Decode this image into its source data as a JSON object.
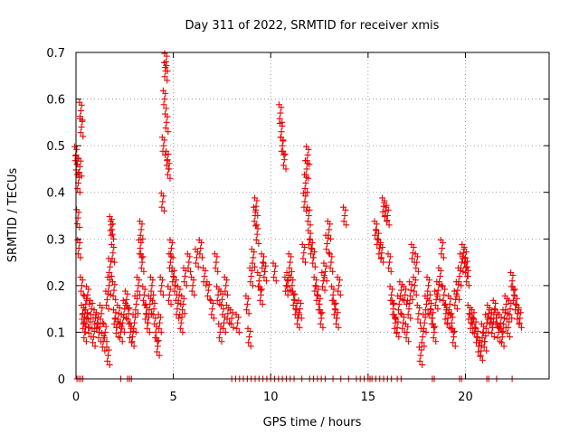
{
  "chart_data": {
    "type": "scatter",
    "title": "Day 311 of 2022, SRMTID for receiver xmis",
    "xlabel": "GPS time / hours",
    "ylabel": "SRMTID / TECUs",
    "xlim": [
      0,
      24.3
    ],
    "ylim": [
      0,
      0.7
    ],
    "xticks": [
      0,
      5,
      10,
      15,
      20
    ],
    "yticks": [
      0,
      0.1,
      0.2,
      0.3,
      0.4,
      0.5,
      0.6,
      0.7
    ],
    "xtick_labels": [
      "0",
      "5",
      "10",
      "15",
      "20"
    ],
    "ytick_labels": [
      "0",
      "0.1",
      "0.2",
      "0.3",
      "0.4",
      "0.5",
      "0.6",
      "0.7"
    ],
    "grid": true,
    "marker": "plus",
    "marker_color": "#ee0000",
    "series": [
      {
        "name": "SRMTID",
        "points": [
          [
            0.0,
            0.48
          ],
          [
            0.05,
            0.46
          ],
          [
            0.1,
            0.345
          ],
          [
            0.12,
            0.42
          ],
          [
            0.15,
            0.28
          ],
          [
            0.2,
            0.455
          ],
          [
            0.25,
            0.575
          ],
          [
            0.28,
            0.54
          ],
          [
            0.3,
            0.2
          ],
          [
            0.35,
            0.14
          ],
          [
            0.4,
            0.12
          ],
          [
            0.45,
            0.1
          ],
          [
            0.5,
            0.16
          ],
          [
            0.55,
            0.13
          ],
          [
            0.6,
            0.18
          ],
          [
            0.7,
            0.11
          ],
          [
            0.8,
            0.15
          ],
          [
            0.9,
            0.09
          ],
          [
            1.0,
            0.13
          ],
          [
            1.1,
            0.12
          ],
          [
            1.2,
            0.1
          ],
          [
            1.3,
            0.14
          ],
          [
            1.4,
            0.08
          ],
          [
            1.5,
            0.1
          ],
          [
            1.6,
            0.17
          ],
          [
            1.65,
            0.05
          ],
          [
            1.7,
            0.2
          ],
          [
            1.75,
            0.24
          ],
          [
            1.8,
            0.33
          ],
          [
            1.85,
            0.32
          ],
          [
            1.9,
            0.27
          ],
          [
            1.95,
            0.19
          ],
          [
            2.0,
            0.13
          ],
          [
            2.1,
            0.11
          ],
          [
            2.2,
            0.14
          ],
          [
            2.3,
            0.1
          ],
          [
            2.4,
            0.12
          ],
          [
            2.5,
            0.15
          ],
          [
            2.6,
            0.17
          ],
          [
            2.7,
            0.14
          ],
          [
            2.8,
            0.1
          ],
          [
            2.9,
            0.09
          ],
          [
            3.0,
            0.12
          ],
          [
            3.1,
            0.16
          ],
          [
            3.2,
            0.2
          ],
          [
            3.3,
            0.28
          ],
          [
            3.35,
            0.32
          ],
          [
            3.4,
            0.25
          ],
          [
            3.5,
            0.18
          ],
          [
            3.6,
            0.14
          ],
          [
            3.7,
            0.12
          ],
          [
            3.8,
            0.16
          ],
          [
            3.9,
            0.2
          ],
          [
            4.0,
            0.15
          ],
          [
            4.1,
            0.1
          ],
          [
            4.2,
            0.07
          ],
          [
            4.3,
            0.12
          ],
          [
            4.4,
            0.2
          ],
          [
            4.45,
            0.38
          ],
          [
            4.5,
            0.5
          ],
          [
            4.55,
            0.6
          ],
          [
            4.6,
            0.66
          ],
          [
            4.62,
            0.68
          ],
          [
            4.65,
            0.55
          ],
          [
            4.7,
            0.47
          ],
          [
            4.75,
            0.45
          ],
          [
            4.8,
            0.18
          ],
          [
            4.85,
            0.25
          ],
          [
            4.9,
            0.28
          ],
          [
            5.0,
            0.22
          ],
          [
            5.1,
            0.2
          ],
          [
            5.2,
            0.15
          ],
          [
            5.3,
            0.18
          ],
          [
            5.4,
            0.12
          ],
          [
            5.5,
            0.16
          ],
          [
            5.6,
            0.22
          ],
          [
            5.8,
            0.25
          ],
          [
            6.0,
            0.2
          ],
          [
            6.2,
            0.26
          ],
          [
            6.4,
            0.28
          ],
          [
            6.6,
            0.22
          ],
          [
            6.8,
            0.19
          ],
          [
            7.0,
            0.15
          ],
          [
            7.2,
            0.25
          ],
          [
            7.3,
            0.18
          ],
          [
            7.4,
            0.1
          ],
          [
            7.5,
            0.17
          ],
          [
            7.6,
            0.12
          ],
          [
            7.7,
            0.2
          ],
          [
            7.8,
            0.14
          ],
          [
            8.0,
            0.13
          ],
          [
            8.3,
            0.12
          ],
          [
            8.8,
            0.16
          ],
          [
            8.9,
            0.09
          ],
          [
            9.0,
            0.22
          ],
          [
            9.1,
            0.26
          ],
          [
            9.2,
            0.35
          ],
          [
            9.25,
            0.37
          ],
          [
            9.3,
            0.31
          ],
          [
            9.4,
            0.21
          ],
          [
            9.5,
            0.18
          ],
          [
            9.6,
            0.25
          ],
          [
            9.7,
            0.23
          ],
          [
            10.2,
            0.23
          ],
          [
            10.5,
            0.57
          ],
          [
            10.55,
            0.53
          ],
          [
            10.6,
            0.5
          ],
          [
            10.7,
            0.47
          ],
          [
            10.8,
            0.2
          ],
          [
            10.9,
            0.21
          ],
          [
            11.0,
            0.25
          ],
          [
            11.1,
            0.2
          ],
          [
            11.2,
            0.17
          ],
          [
            11.3,
            0.15
          ],
          [
            11.4,
            0.13
          ],
          [
            11.5,
            0.15
          ],
          [
            11.7,
            0.27
          ],
          [
            11.75,
            0.38
          ],
          [
            11.8,
            0.42
          ],
          [
            11.85,
            0.45
          ],
          [
            11.9,
            0.48
          ],
          [
            11.95,
            0.35
          ],
          [
            12.0,
            0.3
          ],
          [
            12.1,
            0.28
          ],
          [
            12.2,
            0.26
          ],
          [
            12.3,
            0.2
          ],
          [
            12.4,
            0.18
          ],
          [
            12.5,
            0.16
          ],
          [
            12.6,
            0.13
          ],
          [
            12.7,
            0.21
          ],
          [
            12.8,
            0.23
          ],
          [
            12.9,
            0.29
          ],
          [
            13.0,
            0.32
          ],
          [
            13.1,
            0.25
          ],
          [
            13.2,
            0.18
          ],
          [
            13.3,
            0.15
          ],
          [
            13.4,
            0.13
          ],
          [
            13.5,
            0.2
          ],
          [
            13.8,
            0.35
          ],
          [
            15.4,
            0.32
          ],
          [
            15.5,
            0.3
          ],
          [
            15.6,
            0.28
          ],
          [
            15.7,
            0.27
          ],
          [
            15.8,
            0.37
          ],
          [
            15.9,
            0.36
          ],
          [
            16.0,
            0.35
          ],
          [
            16.1,
            0.25
          ],
          [
            16.2,
            0.18
          ],
          [
            16.3,
            0.15
          ],
          [
            16.4,
            0.12
          ],
          [
            16.5,
            0.11
          ],
          [
            16.6,
            0.16
          ],
          [
            16.7,
            0.19
          ],
          [
            16.8,
            0.12
          ],
          [
            16.9,
            0.18
          ],
          [
            17.0,
            0.1
          ],
          [
            17.1,
            0.15
          ],
          [
            17.2,
            0.19
          ],
          [
            17.3,
            0.27
          ],
          [
            17.4,
            0.2
          ],
          [
            17.5,
            0.25
          ],
          [
            17.6,
            0.14
          ],
          [
            17.7,
            0.05
          ],
          [
            17.8,
            0.09
          ],
          [
            17.9,
            0.12
          ],
          [
            18.0,
            0.16
          ],
          [
            18.1,
            0.2
          ],
          [
            18.2,
            0.15
          ],
          [
            18.3,
            0.13
          ],
          [
            18.4,
            0.1
          ],
          [
            18.5,
            0.17
          ],
          [
            18.6,
            0.19
          ],
          [
            18.7,
            0.22
          ],
          [
            18.8,
            0.28
          ],
          [
            18.9,
            0.18
          ],
          [
            19.0,
            0.14
          ],
          [
            19.1,
            0.13
          ],
          [
            19.2,
            0.16
          ],
          [
            19.3,
            0.12
          ],
          [
            19.4,
            0.09
          ],
          [
            19.5,
            0.17
          ],
          [
            19.6,
            0.19
          ],
          [
            19.7,
            0.22
          ],
          [
            19.8,
            0.25
          ],
          [
            19.9,
            0.27
          ],
          [
            20.0,
            0.26
          ],
          [
            20.05,
            0.24
          ],
          [
            20.1,
            0.22
          ],
          [
            20.2,
            0.14
          ],
          [
            20.3,
            0.12
          ],
          [
            20.4,
            0.13
          ],
          [
            20.5,
            0.11
          ],
          [
            20.6,
            0.09
          ],
          [
            20.7,
            0.07
          ],
          [
            20.8,
            0.06
          ],
          [
            20.9,
            0.1
          ],
          [
            21.0,
            0.08
          ],
          [
            21.1,
            0.12
          ],
          [
            21.2,
            0.14
          ],
          [
            21.3,
            0.13
          ],
          [
            21.4,
            0.11
          ],
          [
            21.5,
            0.15
          ],
          [
            21.6,
            0.13
          ],
          [
            21.7,
            0.1
          ],
          [
            21.8,
            0.12
          ],
          [
            21.9,
            0.09
          ],
          [
            22.0,
            0.13
          ],
          [
            22.1,
            0.16
          ],
          [
            22.2,
            0.11
          ],
          [
            22.3,
            0.15
          ],
          [
            22.4,
            0.21
          ],
          [
            22.5,
            0.18
          ],
          [
            22.6,
            0.16
          ],
          [
            22.7,
            0.14
          ],
          [
            22.8,
            0.13
          ]
        ]
      }
    ],
    "zero_value_times": [
      0.05,
      0.15,
      0.25,
      0.35,
      2.3,
      2.65,
      2.75,
      2.85,
      8.0,
      8.2,
      8.4,
      8.6,
      8.8,
      9.0,
      9.2,
      9.4,
      9.6,
      9.8,
      10.0,
      10.2,
      10.4,
      10.6,
      10.8,
      11.0,
      11.2,
      11.6,
      12.0,
      12.2,
      12.4,
      12.6,
      12.8,
      13.2,
      13.6,
      14.0,
      14.4,
      14.6,
      14.8,
      15.0,
      15.1,
      15.2,
      15.4,
      15.6,
      15.8,
      16.0,
      16.2,
      16.5,
      16.7,
      18.3,
      18.4,
      19.7,
      19.8,
      21.1,
      21.2,
      21.6,
      22.4
    ]
  }
}
